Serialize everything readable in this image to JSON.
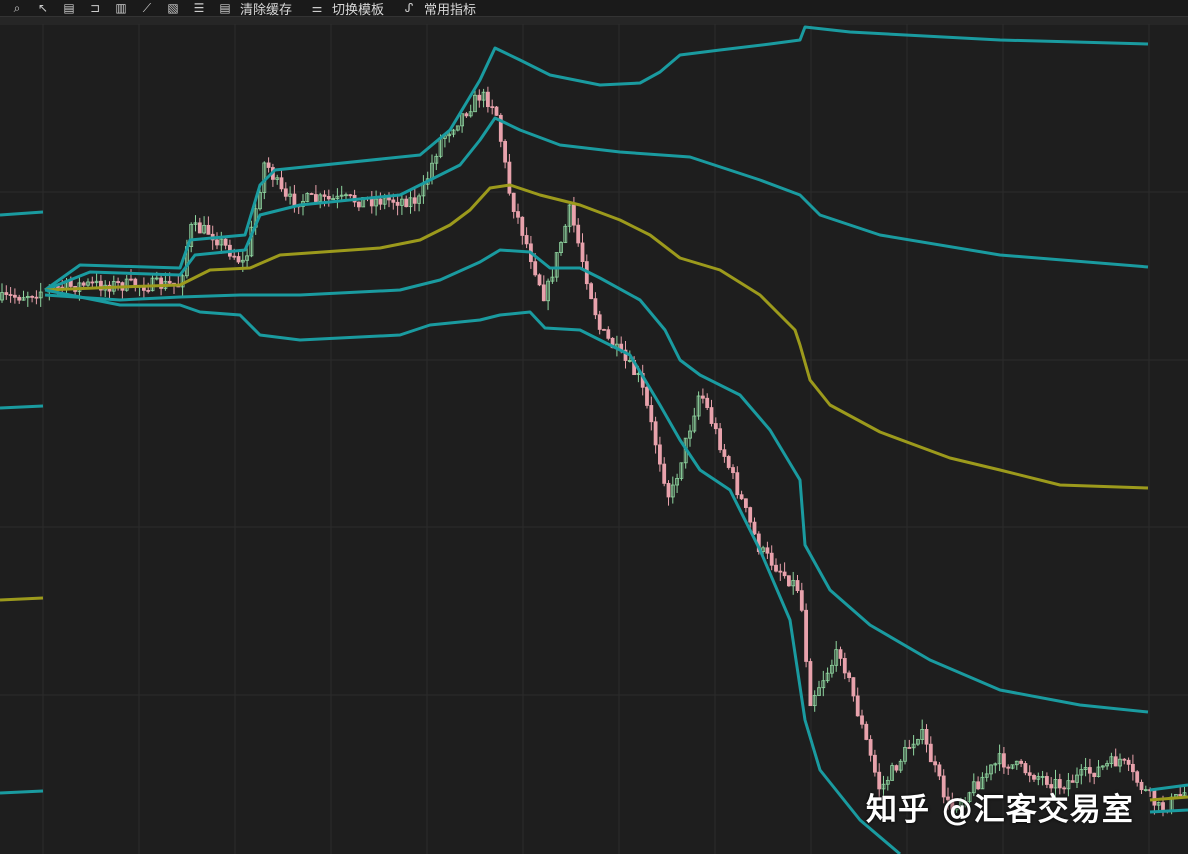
{
  "toolbar": {
    "icons": [
      "zoom-icon",
      "cursor-icon",
      "report-icon",
      "bracket-icon",
      "bar-chart-icon",
      "line-draw-icon",
      "image-icon",
      "list-icon"
    ],
    "clear_cache_label": "清除缓存",
    "switch_template_label": "切换模板",
    "common_indicators_label": "常用指标"
  },
  "colors": {
    "background": "#1e1e1e",
    "band": "#1a9ba0",
    "middle": "#9c9a1c",
    "up": "#8fd6a0",
    "down": "#e8a2ac",
    "grid": "#2c2c2c"
  },
  "watermark": "知乎 @汇客交易室"
}
